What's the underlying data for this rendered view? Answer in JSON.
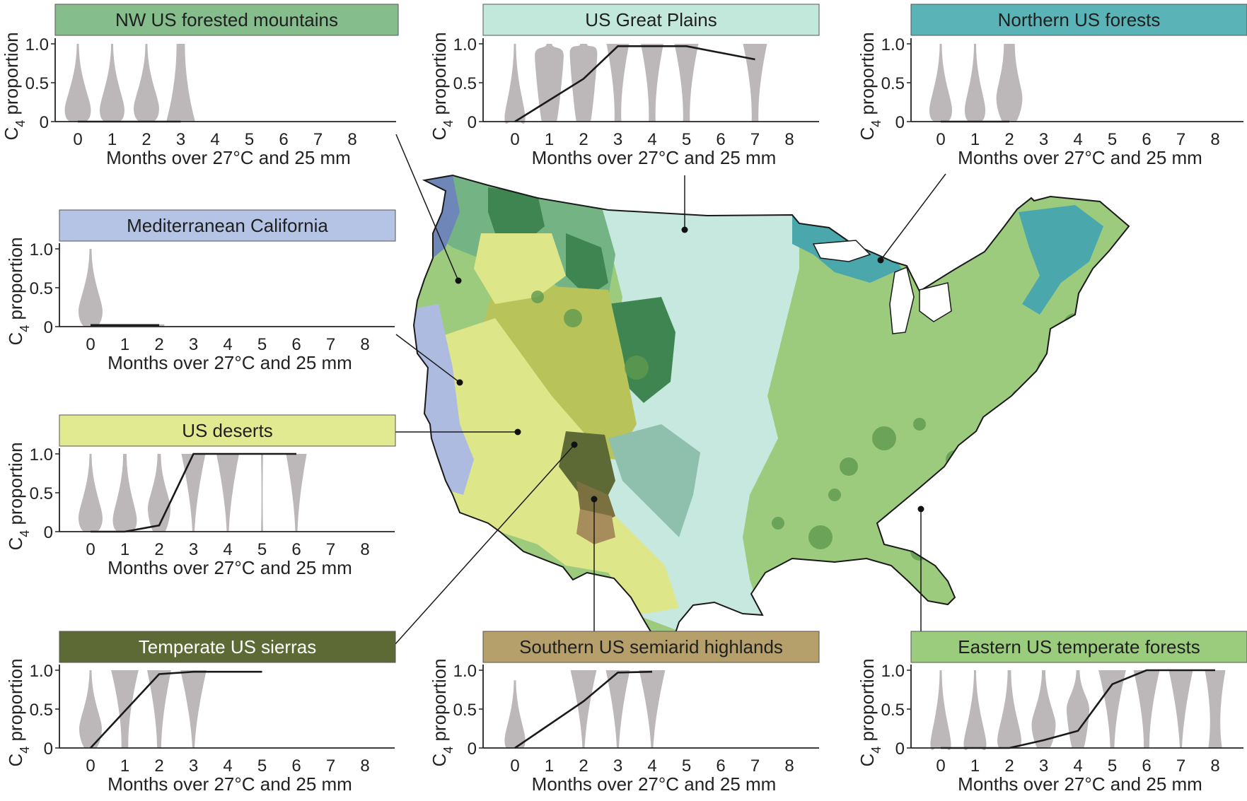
{
  "colors": {
    "violin": "#bcb8b9",
    "line": "#1a1a1a",
    "banner_text_dark": "#1f1f1f",
    "banner_text_light": "#ffffff",
    "map_great_plains": "#c7e8df",
    "map_eastern": "#9ccb7e",
    "map_eastern_dark": "#5f9a50",
    "map_northern": "#4aa8ad",
    "map_nw": "#74b383",
    "map_nw_dark": "#3f8551",
    "map_med_california": "#aebbe0",
    "map_deserts": "#dde689",
    "map_cold_desert": "#b8c45a",
    "map_sierras": "#5e6a35",
    "map_semiarid": "#a88d5c",
    "map_coastal": "#6e86b8"
  },
  "chart_data": [
    {
      "id": "nw",
      "type": "violin",
      "title": "NW US forested mountains",
      "banner_color": "#86bd8d",
      "ylabel": "C4 proportion",
      "xlabel": "Months over 27°C and 25 mm",
      "x_ticks": [
        0,
        1,
        2,
        3,
        4,
        5,
        6,
        7,
        8
      ],
      "y_ticks": [
        "0",
        "0.5",
        "1.0"
      ],
      "xlim": [
        0,
        8
      ],
      "ylim": [
        0,
        1
      ],
      "violins": [
        {
          "x": 0,
          "top": 1.0,
          "neck": 0.015,
          "bulge_y": 0.15,
          "bulge_w": 0.38
        },
        {
          "x": 1,
          "top": 1.0,
          "neck": 0.02,
          "bulge_y": 0.15,
          "bulge_w": 0.36
        },
        {
          "x": 2,
          "top": 1.0,
          "neck": 0.03,
          "bulge_y": 0.17,
          "bulge_w": 0.37
        },
        {
          "x": 3,
          "top": 1.0,
          "neck": 0.12,
          "bulge_y": 0.0,
          "bulge_w": 0.42
        }
      ],
      "mean_x": [
        0,
        1,
        2,
        3
      ],
      "mean_y": [
        0.0,
        0.0,
        0.0,
        0.0
      ]
    },
    {
      "id": "plains",
      "type": "violin",
      "title": "US Great Plains",
      "banner_color": "#c2e8dc",
      "ylabel": "C4 proportion",
      "xlabel": "Months over 27°C and 25 mm",
      "x_ticks": [
        0,
        1,
        2,
        3,
        4,
        5,
        6,
        7,
        8
      ],
      "y_ticks": [
        "0",
        "0.5",
        "1.0"
      ],
      "xlim": [
        0,
        8
      ],
      "ylim": [
        0,
        1
      ],
      "violins": [
        {
          "x": 0,
          "top": 1.0,
          "neck": 0.01,
          "bulge_y": 0.05,
          "bulge_w": 0.3
        },
        {
          "x": 1,
          "top": 1.0,
          "neck": 0.08,
          "bulge_y": 0.85,
          "bulge_w": 0.42
        },
        {
          "x": 2,
          "top": 1.0,
          "neck": 0.1,
          "bulge_y": 0.88,
          "bulge_w": 0.4
        },
        {
          "x": 3,
          "top": 1.0,
          "neck": 0.1,
          "bulge_y": 0.95,
          "bulge_w": 0.33
        },
        {
          "x": 4,
          "top": 1.0,
          "neck": 0.1,
          "bulge_y": 0.95,
          "bulge_w": 0.33
        },
        {
          "x": 5,
          "top": 1.0,
          "neck": 0.1,
          "bulge_y": 0.95,
          "bulge_w": 0.35
        },
        {
          "x": 7,
          "top": 1.0,
          "neck": 0.1,
          "bulge_y": 0.95,
          "bulge_w": 0.35
        }
      ],
      "mean_x": [
        0,
        2,
        3,
        4,
        5,
        7
      ],
      "mean_y": [
        0.0,
        0.55,
        0.97,
        0.97,
        0.97,
        0.8
      ]
    },
    {
      "id": "northern",
      "type": "violin",
      "title": "Northern US forests",
      "banner_color": "#5ab3b6",
      "ylabel": "C4 proportion",
      "xlabel": "Months over 27°C and 25 mm",
      "x_ticks": [
        0,
        1,
        2,
        3,
        4,
        5,
        6,
        7,
        8
      ],
      "y_ticks": [
        "0",
        "0.5",
        "1.0"
      ],
      "xlim": [
        0,
        8
      ],
      "ylim": [
        0,
        1
      ],
      "violins": [
        {
          "x": 0,
          "top": 1.0,
          "neck": 0.01,
          "bulge_y": 0.15,
          "bulge_w": 0.33
        },
        {
          "x": 1,
          "top": 1.0,
          "neck": 0.01,
          "bulge_y": 0.15,
          "bulge_w": 0.3
        },
        {
          "x": 2,
          "top": 1.0,
          "neck": 0.16,
          "bulge_y": 0.3,
          "bulge_w": 0.38
        }
      ],
      "mean_x": [
        0,
        1,
        2
      ],
      "mean_y": [
        0.0,
        0.0,
        0.0
      ]
    },
    {
      "id": "med",
      "type": "violin",
      "title": "Mediterranean California",
      "banner_color": "#b5c4e4",
      "ylabel": "C4 proportion",
      "xlabel": "Months over 27°C and 25 mm",
      "x_ticks": [
        0,
        1,
        2,
        3,
        4,
        5,
        6,
        7,
        8
      ],
      "y_ticks": [
        "0",
        "0.5",
        "1.0"
      ],
      "xlim": [
        0,
        8
      ],
      "ylim": [
        0,
        1
      ],
      "violins": [
        {
          "x": 0,
          "top": 1.0,
          "neck": 0.01,
          "bulge_y": 0.2,
          "bulge_w": 0.35
        },
        {
          "x": 1,
          "top": 0.03,
          "neck": 0.2,
          "bulge_y": 0.0,
          "bulge_w": 0.2
        },
        {
          "x": 2,
          "top": 0.03,
          "neck": 0.15,
          "bulge_y": 0.0,
          "bulge_w": 0.15
        }
      ],
      "mean_x": [
        0,
        1,
        2
      ],
      "mean_y": [
        0.02,
        0.02,
        0.02
      ]
    },
    {
      "id": "deserts",
      "type": "violin",
      "title": "US deserts",
      "banner_color": "#e2ea91",
      "ylabel": "C4 proportion",
      "xlabel": "Months over 27°C and 25 mm",
      "x_ticks": [
        0,
        1,
        2,
        3,
        4,
        5,
        6,
        7,
        8
      ],
      "y_ticks": [
        "0",
        "0.5",
        "1.0"
      ],
      "xlim": [
        0,
        8
      ],
      "ylim": [
        0,
        1
      ],
      "violins": [
        {
          "x": 0,
          "top": 1.0,
          "neck": 0.01,
          "bulge_y": 0.18,
          "bulge_w": 0.35
        },
        {
          "x": 1,
          "top": 1.0,
          "neck": 0.05,
          "bulge_y": 0.15,
          "bulge_w": 0.35
        },
        {
          "x": 2,
          "top": 1.0,
          "neck": 0.05,
          "bulge_y": 0.3,
          "bulge_w": 0.33
        },
        {
          "x": 3,
          "top": 1.0,
          "neck": 0.03,
          "bulge_y": 0.95,
          "bulge_w": 0.35
        },
        {
          "x": 4,
          "top": 1.0,
          "neck": 0.02,
          "bulge_y": 0.95,
          "bulge_w": 0.33
        },
        {
          "x": 5,
          "top": 1.0,
          "neck": 0.0,
          "bulge_y": 0.98,
          "bulge_w": 0.03
        },
        {
          "x": 6,
          "top": 1.0,
          "neck": 0.0,
          "bulge_y": 0.98,
          "bulge_w": 0.3
        }
      ],
      "mean_x": [
        0,
        1,
        2,
        3,
        4,
        5,
        6
      ],
      "mean_y": [
        0.0,
        0.0,
        0.08,
        1.0,
        1.0,
        1.0,
        1.0
      ]
    },
    {
      "id": "sierras",
      "type": "violin",
      "title": "Temperate US sierras",
      "banner_color": "#5e6a35",
      "ylabel": "C4 proportion",
      "xlabel": "Months over 27°C and 25 mm",
      "x_ticks": [
        0,
        1,
        2,
        3,
        4,
        5,
        6,
        7,
        8
      ],
      "y_ticks": [
        "0",
        "0.5",
        "1.0"
      ],
      "xlim": [
        0,
        8
      ],
      "ylim": [
        0,
        1
      ],
      "violins": [
        {
          "x": 0,
          "top": 1.0,
          "neck": 0.03,
          "bulge_y": 0.25,
          "bulge_w": 0.33
        },
        {
          "x": 1,
          "top": 1.0,
          "neck": 0.1,
          "bulge_y": 0.9,
          "bulge_w": 0.4
        },
        {
          "x": 2,
          "top": 1.0,
          "neck": 0.06,
          "bulge_y": 0.9,
          "bulge_w": 0.35
        },
        {
          "x": 3,
          "top": 1.0,
          "neck": 0.02,
          "bulge_y": 0.95,
          "bulge_w": 0.38
        }
      ],
      "mean_x": [
        0,
        2,
        3,
        5
      ],
      "mean_y": [
        0.0,
        0.95,
        0.98,
        0.98
      ]
    },
    {
      "id": "semiarid",
      "type": "violin",
      "title": "Southern US semiarid highlands",
      "banner_color": "#b5a06c",
      "ylabel": "C4 proportion",
      "xlabel": "Months over 27°C and 25 mm",
      "x_ticks": [
        0,
        1,
        2,
        3,
        4,
        5,
        6,
        7,
        8
      ],
      "y_ticks": [
        "0",
        "0.5",
        "1.0"
      ],
      "xlim": [
        0,
        8
      ],
      "ylim": [
        0,
        1
      ],
      "violins": [
        {
          "x": 0,
          "top": 0.87,
          "neck": 0.01,
          "bulge_y": 0.1,
          "bulge_w": 0.3
        },
        {
          "x": 2,
          "top": 1.0,
          "neck": 0.02,
          "bulge_y": 0.95,
          "bulge_w": 0.38
        },
        {
          "x": 3,
          "top": 1.0,
          "neck": 0.02,
          "bulge_y": 0.95,
          "bulge_w": 0.35
        },
        {
          "x": 4,
          "top": 1.0,
          "neck": 0.01,
          "bulge_y": 0.95,
          "bulge_w": 0.38
        }
      ],
      "mean_x": [
        0,
        2,
        3,
        4
      ],
      "mean_y": [
        0.0,
        0.6,
        0.97,
        0.98
      ]
    },
    {
      "id": "eastern",
      "type": "violin",
      "title": "Eastern US temperate forests",
      "banner_color": "#9bcc7e",
      "ylabel": "C4 proportion",
      "xlabel": "Months over 27°C and 25 mm",
      "x_ticks": [
        0,
        1,
        2,
        3,
        4,
        5,
        6,
        7,
        8
      ],
      "y_ticks": [
        "0",
        "0.5",
        "1.0"
      ],
      "xlim": [
        0,
        8
      ],
      "ylim": [
        0,
        1
      ],
      "violins": [
        {
          "x": 0,
          "top": 1.0,
          "neck": 0.01,
          "bulge_y": 0.05,
          "bulge_w": 0.3
        },
        {
          "x": 1,
          "top": 1.0,
          "neck": 0.02,
          "bulge_y": 0.05,
          "bulge_w": 0.33
        },
        {
          "x": 2,
          "top": 1.0,
          "neck": 0.05,
          "bulge_y": 0.1,
          "bulge_w": 0.35
        },
        {
          "x": 3,
          "top": 1.0,
          "neck": 0.05,
          "bulge_y": 0.3,
          "bulge_w": 0.35
        },
        {
          "x": 4,
          "top": 1.0,
          "neck": 0.05,
          "bulge_y": 0.5,
          "bulge_w": 0.33
        },
        {
          "x": 5,
          "top": 1.0,
          "neck": 0.06,
          "bulge_y": 0.95,
          "bulge_w": 0.4
        },
        {
          "x": 6,
          "top": 1.0,
          "neck": 0.08,
          "bulge_y": 0.95,
          "bulge_w": 0.38
        },
        {
          "x": 7,
          "top": 1.0,
          "neck": 0.01,
          "bulge_y": 0.95,
          "bulge_w": 0.35
        },
        {
          "x": 8,
          "top": 1.0,
          "neck": 0.2,
          "bulge_y": 0.92,
          "bulge_w": 0.3
        }
      ],
      "mean_x": [
        0,
        1,
        2,
        3,
        4,
        5,
        6,
        7,
        8
      ],
      "mean_y": [
        0.0,
        0.0,
        0.0,
        0.1,
        0.22,
        0.82,
        1.0,
        1.0,
        1.0
      ]
    }
  ]
}
